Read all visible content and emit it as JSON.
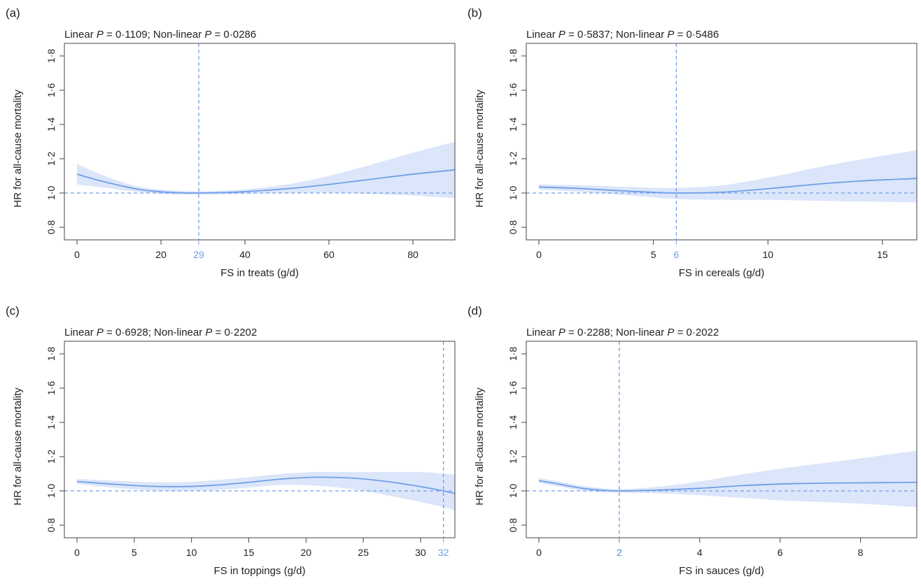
{
  "colors": {
    "line": "#6f9ee6",
    "band": "#dce6fa",
    "ref": "#6f9ee6",
    "axis": "#444444",
    "text": "#222222"
  },
  "chart_data": [
    {
      "type": "line",
      "panel_label": "(a)",
      "subtitle": {
        "linear_prefix": "Linear ",
        "p": "P",
        "linear_value": " = 0·1109; Non-linear ",
        "nonlinear_value": " = 0·0286"
      },
      "xlabel": "FS in treats (g/d)",
      "ylabel": "HR for all-cause mortality",
      "xlim": [
        0,
        90
      ],
      "ylim": [
        0.8,
        1.8
      ],
      "xticks": [
        {
          "v": 0,
          "label": "0"
        },
        {
          "v": 20,
          "label": "20"
        },
        {
          "v": 40,
          "label": "40"
        },
        {
          "v": 60,
          "label": "60"
        },
        {
          "v": 80,
          "label": "80"
        }
      ],
      "yticks": [
        {
          "v": 0.8,
          "label": "0·8"
        },
        {
          "v": 1.0,
          "label": "1·0"
        },
        {
          "v": 1.2,
          "label": "1·2"
        },
        {
          "v": 1.4,
          "label": "1·4"
        },
        {
          "v": 1.6,
          "label": "1·6"
        },
        {
          "v": 1.8,
          "label": "1·8"
        }
      ],
      "reference_hr": 1.0,
      "reference_x": {
        "v": 29,
        "label": "29"
      },
      "series": [
        {
          "x": [
            0,
            5,
            10,
            15,
            20,
            25,
            29,
            35,
            40,
            50,
            60,
            70,
            80,
            90
          ],
          "hr": [
            1.11,
            1.075,
            1.045,
            1.02,
            1.007,
            1.001,
            1.0,
            1.003,
            1.008,
            1.025,
            1.05,
            1.08,
            1.11,
            1.135
          ],
          "lower": [
            1.05,
            1.035,
            1.02,
            1.005,
            0.995,
            0.99,
            0.99,
            0.992,
            0.995,
            1.0,
            1.002,
            0.995,
            0.985,
            0.97
          ],
          "upper": [
            1.17,
            1.115,
            1.07,
            1.035,
            1.02,
            1.012,
            1.01,
            1.014,
            1.022,
            1.05,
            1.1,
            1.165,
            1.235,
            1.3
          ]
        }
      ]
    },
    {
      "type": "line",
      "panel_label": "(b)",
      "subtitle": {
        "linear_prefix": "Linear ",
        "p": "P",
        "linear_value": " = 0·5837; Non-linear ",
        "nonlinear_value": " = 0·5486"
      },
      "xlabel": "FS in cereals (g/d)",
      "ylabel": "HR for all-cause mortality",
      "xlim": [
        0,
        16.5
      ],
      "ylim": [
        0.8,
        1.8
      ],
      "xticks": [
        {
          "v": 0,
          "label": "0"
        },
        {
          "v": 5,
          "label": "5"
        },
        {
          "v": 10,
          "label": "10"
        },
        {
          "v": 15,
          "label": "15"
        }
      ],
      "yticks": [
        {
          "v": 0.8,
          "label": "0·8"
        },
        {
          "v": 1.0,
          "label": "1·0"
        },
        {
          "v": 1.2,
          "label": "1·2"
        },
        {
          "v": 1.4,
          "label": "1·4"
        },
        {
          "v": 1.6,
          "label": "1·6"
        },
        {
          "v": 1.8,
          "label": "1·8"
        }
      ],
      "reference_hr": 1.0,
      "reference_x": {
        "v": 6,
        "label": "6"
      },
      "series": [
        {
          "x": [
            0,
            2,
            4,
            6,
            8,
            10,
            12,
            14,
            16.5
          ],
          "hr": [
            1.035,
            1.025,
            1.01,
            1.0,
            1.005,
            1.025,
            1.05,
            1.07,
            1.085
          ],
          "lower": [
            1.02,
            1.005,
            0.985,
            0.965,
            0.96,
            0.96,
            0.955,
            0.95,
            0.945
          ],
          "upper": [
            1.05,
            1.045,
            1.035,
            1.03,
            1.045,
            1.09,
            1.145,
            1.195,
            1.25
          ]
        }
      ]
    },
    {
      "type": "line",
      "panel_label": "(c)",
      "subtitle": {
        "linear_prefix": "Linear ",
        "p": "P",
        "linear_value": " = 0·6928; Non-linear ",
        "nonlinear_value": " = 0·2202"
      },
      "xlabel": "FS in toppings (g/d)",
      "ylabel": "HR for all-cause mortality",
      "xlim": [
        0,
        33
      ],
      "ylim": [
        0.8,
        1.8
      ],
      "xticks": [
        {
          "v": 0,
          "label": "0"
        },
        {
          "v": 5,
          "label": "5"
        },
        {
          "v": 10,
          "label": "10"
        },
        {
          "v": 15,
          "label": "15"
        },
        {
          "v": 20,
          "label": "20"
        },
        {
          "v": 25,
          "label": "25"
        },
        {
          "v": 30,
          "label": "30"
        }
      ],
      "yticks": [
        {
          "v": 0.8,
          "label": "0·8"
        },
        {
          "v": 1.0,
          "label": "1·0"
        },
        {
          "v": 1.2,
          "label": "1·2"
        },
        {
          "v": 1.4,
          "label": "1·4"
        },
        {
          "v": 1.6,
          "label": "1·6"
        },
        {
          "v": 1.8,
          "label": "1·8"
        }
      ],
      "reference_hr": 1.0,
      "reference_x": {
        "v": 32,
        "label": "32"
      },
      "series": [
        {
          "x": [
            0,
            3,
            6,
            9,
            12,
            15,
            18,
            21,
            24,
            27,
            30,
            32,
            33
          ],
          "hr": [
            1.055,
            1.04,
            1.028,
            1.025,
            1.033,
            1.05,
            1.07,
            1.08,
            1.075,
            1.055,
            1.025,
            1.0,
            0.985
          ],
          "lower": [
            1.04,
            1.02,
            1.005,
            1.0,
            1.005,
            1.02,
            1.035,
            1.03,
            1.01,
            0.975,
            0.935,
            0.905,
            0.885
          ],
          "upper": [
            1.07,
            1.06,
            1.052,
            1.05,
            1.062,
            1.08,
            1.1,
            1.11,
            1.11,
            1.11,
            1.11,
            1.1,
            1.095
          ]
        }
      ]
    },
    {
      "type": "line",
      "panel_label": "(d)",
      "subtitle": {
        "linear_prefix": "Linear ",
        "p": "P",
        "linear_value": " = 0·2288; Non-linear ",
        "nonlinear_value": " = 0·2022"
      },
      "xlabel": "FS in sauces (g/d)",
      "ylabel": "HR for all-cause mortality",
      "xlim": [
        0,
        9.4
      ],
      "ylim": [
        0.8,
        1.8
      ],
      "xticks": [
        {
          "v": 0,
          "label": "0"
        },
        {
          "v": 2,
          "label": "2"
        },
        {
          "v": 4,
          "label": "4"
        },
        {
          "v": 6,
          "label": "6"
        },
        {
          "v": 8,
          "label": "8"
        }
      ],
      "yticks": [
        {
          "v": 0.8,
          "label": "0·8"
        },
        {
          "v": 1.0,
          "label": "1·0"
        },
        {
          "v": 1.2,
          "label": "1·2"
        },
        {
          "v": 1.4,
          "label": "1·4"
        },
        {
          "v": 1.6,
          "label": "1·6"
        },
        {
          "v": 1.8,
          "label": "1·8"
        }
      ],
      "reference_hr": 1.0,
      "reference_x": {
        "v": 2,
        "label": "2"
      },
      "series": [
        {
          "x": [
            0,
            0.5,
            1,
            1.5,
            2,
            3,
            4,
            5,
            6,
            7,
            8,
            9.4
          ],
          "hr": [
            1.06,
            1.04,
            1.018,
            1.005,
            1.0,
            1.005,
            1.015,
            1.03,
            1.04,
            1.045,
            1.047,
            1.05
          ],
          "lower": [
            1.045,
            1.025,
            1.005,
            0.993,
            0.99,
            0.985,
            0.975,
            0.96,
            0.945,
            0.935,
            0.925,
            0.905
          ],
          "upper": [
            1.075,
            1.055,
            1.032,
            1.018,
            1.01,
            1.025,
            1.055,
            1.095,
            1.13,
            1.16,
            1.19,
            1.235
          ]
        }
      ]
    }
  ]
}
